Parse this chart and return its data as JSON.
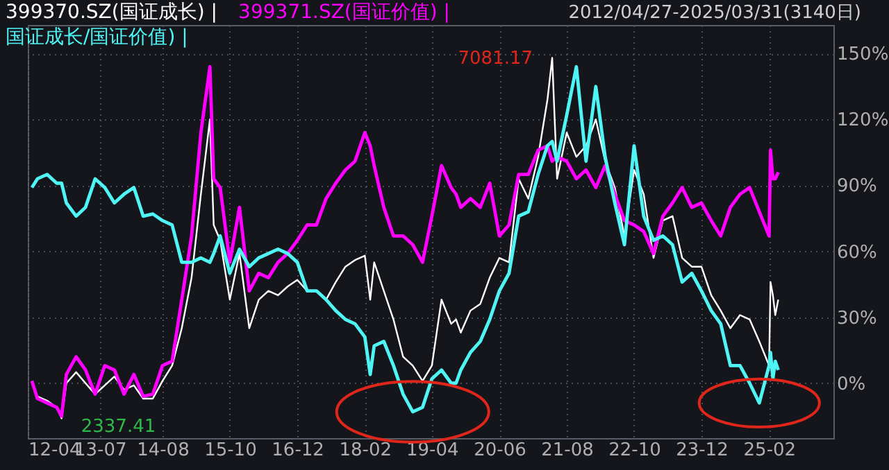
{
  "chart_data": {
    "type": "line",
    "title": "2012/04/27-2025/03/31(3140日)",
    "x": [
      "2012-04-27",
      "2012-06",
      "2012-08",
      "2012-10",
      "2012-11",
      "2012-12",
      "2013-02",
      "2013-04",
      "2013-06",
      "2013-08",
      "2013-10",
      "2013-12",
      "2014-02",
      "2014-04",
      "2014-06",
      "2014-08",
      "2014-10",
      "2014-12",
      "2015-02",
      "2015-04",
      "2015-05-28",
      "2015-06-21",
      "2015-08",
      "2015-10",
      "2015-12",
      "2016-02",
      "2016-04",
      "2016-06",
      "2016-08",
      "2016-10",
      "2016-12",
      "2017-02",
      "2017-04",
      "2017-06",
      "2017-08",
      "2017-10",
      "2017-12",
      "2018-02",
      "2018-03-07",
      "2018-04",
      "2018-06",
      "2018-08",
      "2018-10",
      "2018-12",
      "2019-02",
      "2019-04",
      "2019-06",
      "2019-08",
      "2019-09",
      "2019-10",
      "2019-12",
      "2020-02",
      "2020-04",
      "2020-06",
      "2020-08",
      "2020-10",
      "2020-12",
      "2021-02",
      "2021-04",
      "2021-05",
      "2021-06",
      "2021-08",
      "2021-10",
      "2021-12",
      "2022-02",
      "2022-04",
      "2022-06",
      "2022-08",
      "2022-10",
      "2022-12",
      "2023-02",
      "2023-04",
      "2023-06",
      "2023-08",
      "2023-10",
      "2023-12",
      "2024-02",
      "2024-04",
      "2024-06",
      "2024-08",
      "2024-10",
      "2024-12",
      "2025-02",
      "2025-02-10",
      "2025-02-25",
      "2025-03-12",
      "2025-03-31"
    ],
    "series": [
      {
        "name": "399370.SZ(国证成长) |",
        "color": "#ffffff",
        "values": [
          0,
          -6,
          -8,
          -11,
          -16,
          0,
          5,
          0,
          -5,
          -1,
          3,
          -3,
          -1,
          -7,
          -7,
          1,
          8,
          25,
          48,
          86,
          120,
          72,
          65,
          38,
          59,
          25,
          38,
          42,
          40,
          44,
          47,
          42,
          42,
          38,
          46,
          53,
          56,
          58,
          38,
          55,
          42,
          29,
          12,
          8,
          1,
          8,
          38,
          27,
          29,
          23,
          33,
          36,
          48,
          57,
          55,
          93,
          84,
          103,
          129,
          148,
          93,
          114,
          103,
          108,
          120,
          101,
          89,
          67,
          97,
          86,
          57,
          74,
          76,
          57,
          53,
          53,
          40,
          33,
          25,
          31,
          29,
          19,
          8,
          46,
          40,
          31,
          38
        ]
      },
      {
        "name": "399371.SZ(国证价值) |",
        "color": "#ff00ff",
        "values": [
          1,
          -7,
          -9,
          -11,
          -15,
          4,
          12,
          6,
          -5,
          8,
          6,
          -5,
          4,
          -6,
          -5,
          8,
          10,
          38,
          67,
          114,
          144,
          93,
          89,
          55,
          80,
          42,
          50,
          48,
          55,
          59,
          65,
          72,
          72,
          84,
          91,
          97,
          101,
          114,
          108,
          99,
          80,
          67,
          67,
          63,
          55,
          76,
          99,
          89,
          86,
          80,
          84,
          80,
          91,
          67,
          72,
          95,
          95,
          106,
          108,
          101,
          103,
          101,
          93,
          97,
          89,
          99,
          86,
          74,
          72,
          69,
          59,
          76,
          82,
          89,
          80,
          82,
          74,
          67,
          80,
          86,
          89,
          78,
          67,
          106,
          93,
          93,
          96
        ]
      },
      {
        "name": "国证成长/国证价值) |",
        "color": "#4ff5f5",
        "values": [
          89,
          93,
          95,
          91,
          91,
          82,
          76,
          80,
          93,
          89,
          82,
          86,
          89,
          76,
          77,
          74,
          72,
          55,
          55,
          57,
          55,
          59,
          67,
          50,
          61,
          53,
          57,
          59,
          61,
          59,
          55,
          42,
          42,
          38,
          33,
          29,
          27,
          21,
          4,
          17,
          19,
          8,
          -5,
          -13,
          -11,
          2,
          6,
          0,
          0,
          6,
          14,
          19,
          29,
          42,
          50,
          76,
          78,
          95,
          108,
          110,
          101,
          122,
          144,
          101,
          135,
          103,
          82,
          63,
          108,
          76,
          65,
          67,
          63,
          46,
          50,
          42,
          33,
          27,
          8,
          8,
          0,
          -9,
          8,
          14,
          2,
          10,
          6
        ]
      }
    ],
    "xlim": [
      "2012-04",
      "2026-03-15"
    ],
    "xticks": [
      {
        "value": "2012-04",
        "label": "12-04"
      },
      {
        "value": "2013-07",
        "label": "13-07"
      },
      {
        "value": "2014-08",
        "label": "14-08"
      },
      {
        "value": "2015-10",
        "label": "15-10"
      },
      {
        "value": "2016-12",
        "label": "16-12"
      },
      {
        "value": "2018-02",
        "label": "18-02"
      },
      {
        "value": "2019-04",
        "label": "19-04"
      },
      {
        "value": "2020-06",
        "label": "20-06"
      },
      {
        "value": "2021-08",
        "label": "21-08"
      },
      {
        "value": "2022-10",
        "label": "22-10"
      },
      {
        "value": "2023-12",
        "label": "23-12"
      },
      {
        "value": "2025-02",
        "label": "25-02"
      }
    ],
    "ylim": [
      -25,
      163
    ],
    "yticks": [
      {
        "value": 0,
        "label": "0%"
      },
      {
        "value": 30,
        "label": "30%"
      },
      {
        "value": 60,
        "label": "60%"
      },
      {
        "value": 90,
        "label": "90%"
      },
      {
        "value": 120,
        "label": "120%"
      },
      {
        "value": 150,
        "label": "150%"
      }
    ],
    "annotations": [
      {
        "text": "7081.17",
        "x": "2021-05",
        "y": 148
      },
      {
        "text": "2337.41",
        "x": "2012-11",
        "y": -16
      }
    ],
    "grid": true,
    "legend": "top left",
    "marker": "none",
    "line_style": "solid"
  }
}
